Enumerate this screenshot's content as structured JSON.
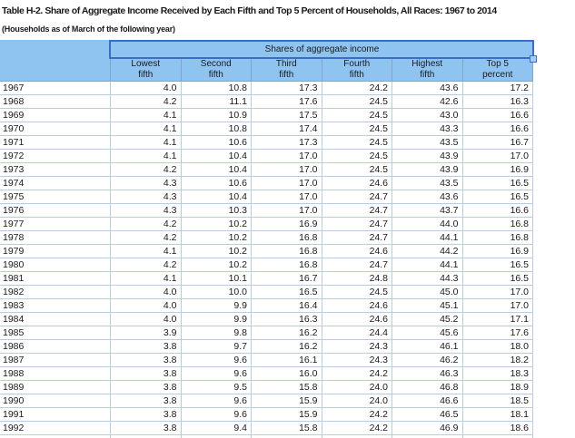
{
  "page": {
    "title": "Table H-2. Share of Aggregate Income Received by Each Fifth and Top 5 Percent of Households, All Races: 1967 to 2014",
    "subtitle": "(Households as of March of the following year)"
  },
  "table": {
    "group_header": "Shares of aggregate income",
    "columns": [
      {
        "line1": "Lowest",
        "line2": "fifth"
      },
      {
        "line1": "Second",
        "line2": "fifth"
      },
      {
        "line1": "Third",
        "line2": "fifth"
      },
      {
        "line1": "Fourth",
        "line2": "fifth"
      },
      {
        "line1": "Highest",
        "line2": "fifth"
      },
      {
        "line1": "Top 5",
        "line2": "percent"
      }
    ],
    "rows": [
      {
        "year": "1967",
        "values": [
          "4.0",
          "10.8",
          "17.3",
          "24.2",
          "43.6",
          "17.2"
        ]
      },
      {
        "year": "1968",
        "values": [
          "4.2",
          "11.1",
          "17.6",
          "24.5",
          "42.6",
          "16.3"
        ]
      },
      {
        "year": "1969",
        "values": [
          "4.1",
          "10.9",
          "17.5",
          "24.5",
          "43.0",
          "16.6"
        ]
      },
      {
        "year": "1970",
        "values": [
          "4.1",
          "10.8",
          "17.4",
          "24.5",
          "43.3",
          "16.6"
        ]
      },
      {
        "year": "1971",
        "values": [
          "4.1",
          "10.6",
          "17.3",
          "24.5",
          "43.5",
          "16.7"
        ]
      },
      {
        "year": "1972",
        "values": [
          "4.1",
          "10.4",
          "17.0",
          "24.5",
          "43.9",
          "17.0"
        ]
      },
      {
        "year": "1973",
        "values": [
          "4.2",
          "10.4",
          "17.0",
          "24.5",
          "43.9",
          "16.9"
        ]
      },
      {
        "year": "1974",
        "values": [
          "4.3",
          "10.6",
          "17.0",
          "24.6",
          "43.5",
          "16.5"
        ]
      },
      {
        "year": "1975",
        "values": [
          "4.3",
          "10.4",
          "17.0",
          "24.7",
          "43.6",
          "16.5"
        ]
      },
      {
        "year": "1976",
        "values": [
          "4.3",
          "10.3",
          "17.0",
          "24.7",
          "43.7",
          "16.6"
        ]
      },
      {
        "year": "1977",
        "values": [
          "4.2",
          "10.2",
          "16.9",
          "24.7",
          "44.0",
          "16.8"
        ]
      },
      {
        "year": "1978",
        "values": [
          "4.2",
          "10.2",
          "16.8",
          "24.7",
          "44.1",
          "16.8"
        ]
      },
      {
        "year": "1979",
        "values": [
          "4.1",
          "10.2",
          "16.8",
          "24.6",
          "44.2",
          "16.9"
        ]
      },
      {
        "year": "1980",
        "values": [
          "4.2",
          "10.2",
          "16.8",
          "24.7",
          "44.1",
          "16.5"
        ]
      },
      {
        "year": "1981",
        "values": [
          "4.1",
          "10.1",
          "16.7",
          "24.8",
          "44.3",
          "16.5"
        ]
      },
      {
        "year": "1982",
        "values": [
          "4.0",
          "10.0",
          "16.5",
          "24.5",
          "45.0",
          "17.0"
        ]
      },
      {
        "year": "1983",
        "values": [
          "4.0",
          "9.9",
          "16.4",
          "24.6",
          "45.1",
          "17.0"
        ]
      },
      {
        "year": "1984",
        "values": [
          "4.0",
          "9.9",
          "16.3",
          "24.6",
          "45.2",
          "17.1"
        ]
      },
      {
        "year": "1985",
        "values": [
          "3.9",
          "9.8",
          "16.2",
          "24.4",
          "45.6",
          "17.6"
        ]
      },
      {
        "year": "1986",
        "values": [
          "3.8",
          "9.7",
          "16.2",
          "24.3",
          "46.1",
          "18.0"
        ]
      },
      {
        "year": "1987",
        "values": [
          "3.8",
          "9.6",
          "16.1",
          "24.3",
          "46.2",
          "18.2"
        ]
      },
      {
        "year": "1988",
        "values": [
          "3.8",
          "9.6",
          "16.0",
          "24.2",
          "46.3",
          "18.3"
        ]
      },
      {
        "year": "1989",
        "values": [
          "3.8",
          "9.5",
          "15.8",
          "24.0",
          "46.8",
          "18.9"
        ]
      },
      {
        "year": "1990",
        "values": [
          "3.8",
          "9.6",
          "15.9",
          "24.0",
          "46.6",
          "18.5"
        ]
      },
      {
        "year": "1991",
        "values": [
          "3.8",
          "9.6",
          "15.9",
          "24.2",
          "46.5",
          "18.1"
        ]
      },
      {
        "year": "1992",
        "values": [
          "3.8",
          "9.4",
          "15.8",
          "24.2",
          "46.9",
          "18.6"
        ]
      }
    ]
  },
  "selection": {
    "selected_cell_text": "Shares of aggregate income",
    "has_fill_handle": true
  },
  "colors": {
    "header_fill": "#8FC4F1",
    "selection_border": "#3B6FC5",
    "fill_handle_fill": "#A6CDF3",
    "grid_line": "#B7CEE2",
    "header_separator": "#7EA6C8",
    "text": "#1A1A1E"
  }
}
